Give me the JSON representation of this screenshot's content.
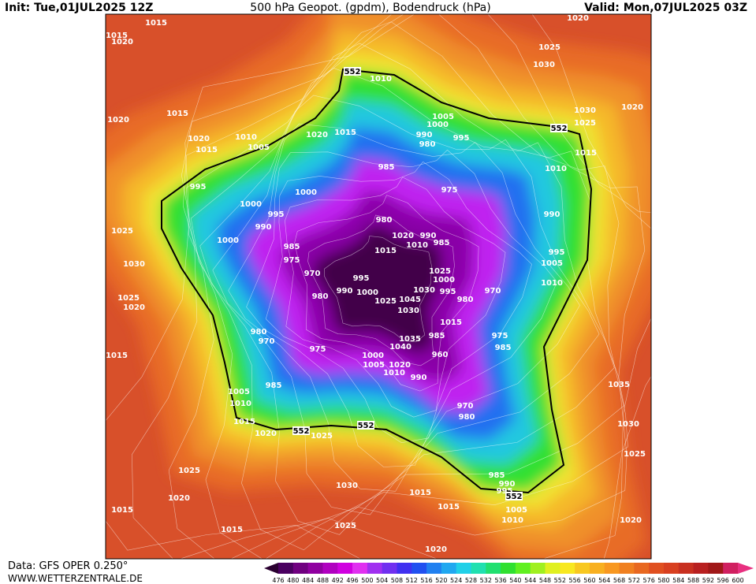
{
  "header": {
    "init": "Init: Tue,01JUL2025 12Z",
    "title": "500 hPa Geopot. (gpdm), Bodendruck (hPa)",
    "valid": "Valid: Mon,07JUL2025 03Z"
  },
  "footer": {
    "data": "Data: GFS OPER 0.250°",
    "site": "WWW.WETTERZENTRALE.DE"
  },
  "geopotential_labels": [
    552,
    552,
    552,
    552,
    552
  ],
  "isobar_labels": [
    1015,
    1020,
    1015,
    1020,
    1025,
    1030,
    1030,
    1025,
    1020,
    1020,
    1015,
    1020,
    1015,
    1010,
    1005,
    1020,
    1015,
    1010,
    1005,
    1000,
    990,
    980,
    995,
    985,
    975,
    1010,
    1015,
    995,
    1000,
    1000,
    995,
    990,
    1000,
    985,
    975,
    970,
    990,
    995,
    1005,
    1010,
    1025,
    1030,
    1025,
    1020,
    1015,
    980,
    1020,
    990,
    1010,
    985,
    1015,
    1025,
    1000,
    995,
    980,
    970,
    995,
    990,
    1000,
    980,
    1025,
    1045,
    1030,
    1030,
    1015,
    980,
    970,
    975,
    975,
    985,
    1035,
    985,
    1040,
    1000,
    960,
    1005,
    1020,
    1010,
    990,
    985,
    1005,
    1010,
    1015,
    1020,
    1025,
    970,
    980,
    1035,
    1030,
    1025,
    985,
    990,
    995,
    1005,
    1010,
    1020,
    1025,
    1020,
    1015,
    1015,
    1030,
    1025,
    1015,
    1015,
    1020
  ],
  "colorbar": {
    "labels": [
      476,
      480,
      484,
      488,
      492,
      496,
      500,
      504,
      508,
      512,
      516,
      520,
      524,
      528,
      532,
      536,
      540,
      544,
      548,
      552,
      556,
      560,
      564,
      568,
      572,
      576,
      580,
      584,
      588,
      592,
      596,
      600
    ],
    "colors": [
      "#2a0030",
      "#4a0060",
      "#700080",
      "#9000a0",
      "#b000c0",
      "#d000e0",
      "#e030f0",
      "#a030f0",
      "#7030f0",
      "#4030f0",
      "#2050f0",
      "#2080f0",
      "#20a8f0",
      "#20d0e8",
      "#20e0b0",
      "#20e070",
      "#30e030",
      "#60f020",
      "#a0f020",
      "#e0f020",
      "#f8e820",
      "#f8c820",
      "#f8b020",
      "#f89820",
      "#f08020",
      "#e86820",
      "#e05020",
      "#d84020",
      "#c83020",
      "#b82020",
      "#a01818",
      "#d02060",
      "#e83080"
    ]
  }
}
